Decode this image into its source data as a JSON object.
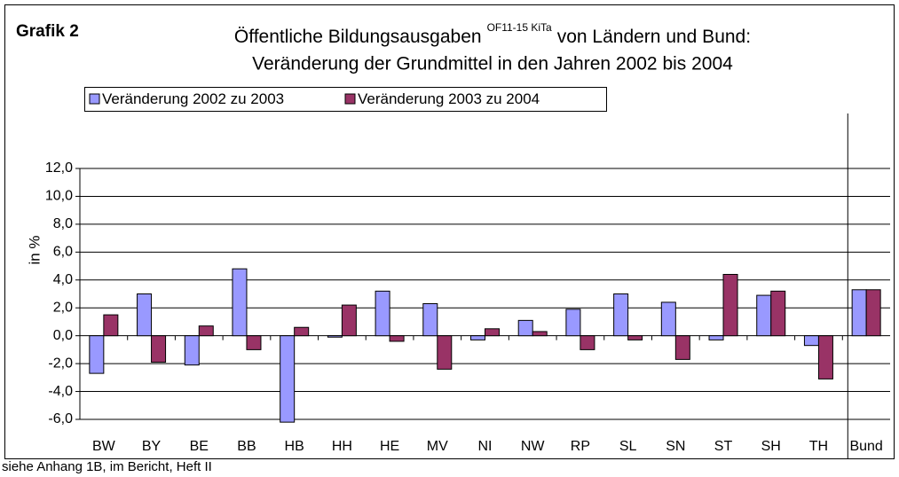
{
  "chart_data": {
    "type": "bar",
    "label": "Grafik 2",
    "title": [
      "Öffentliche Bildungsausgaben",
      "OF11-15 KiTa",
      "von Ländern und Bund:"
    ],
    "subtitle": "Veränderung der Grundmittel in den Jahren 2002 bis 2004",
    "ylabel": "in %",
    "source": "siehe Anhang 1B, im Bericht, Heft II",
    "categories": [
      "BW",
      "BY",
      "BE",
      "BB",
      "HB",
      "HH",
      "HE",
      "MV",
      "NI",
      "NW",
      "RP",
      "SL",
      "SN",
      "ST",
      "SH",
      "TH",
      "Bund"
    ],
    "series": [
      {
        "name": "Veränderung 2002 zu 2003",
        "color": "#9999ff",
        "values": [
          -2.7,
          3.0,
          -2.1,
          4.8,
          -6.2,
          -0.1,
          3.2,
          2.3,
          -0.3,
          1.1,
          1.9,
          3.0,
          2.4,
          -0.3,
          2.9,
          -0.7,
          3.3
        ]
      },
      {
        "name": "Veränderung 2003 zu 2004",
        "color": "#993366",
        "values": [
          1.5,
          -1.9,
          0.7,
          -1.0,
          0.6,
          2.2,
          -0.4,
          -2.4,
          0.5,
          0.3,
          -1.0,
          -0.3,
          -1.7,
          4.4,
          3.2,
          -3.1,
          3.3
        ]
      }
    ],
    "ylim": [
      -6,
      12
    ],
    "yticks": [
      {
        "value": -6,
        "label": "-6,0"
      },
      {
        "value": -4,
        "label": "-4,0"
      },
      {
        "value": -2,
        "label": "-2,0"
      },
      {
        "value": 0,
        "label": "0,0"
      },
      {
        "value": 2,
        "label": "2,0"
      },
      {
        "value": 4,
        "label": "4,0"
      },
      {
        "value": 6,
        "label": "6,0"
      },
      {
        "value": 8,
        "label": "8,0"
      },
      {
        "value": 10,
        "label": "10,0"
      },
      {
        "value": 12,
        "label": "12,0"
      }
    ],
    "grid": true,
    "legend": "top"
  }
}
